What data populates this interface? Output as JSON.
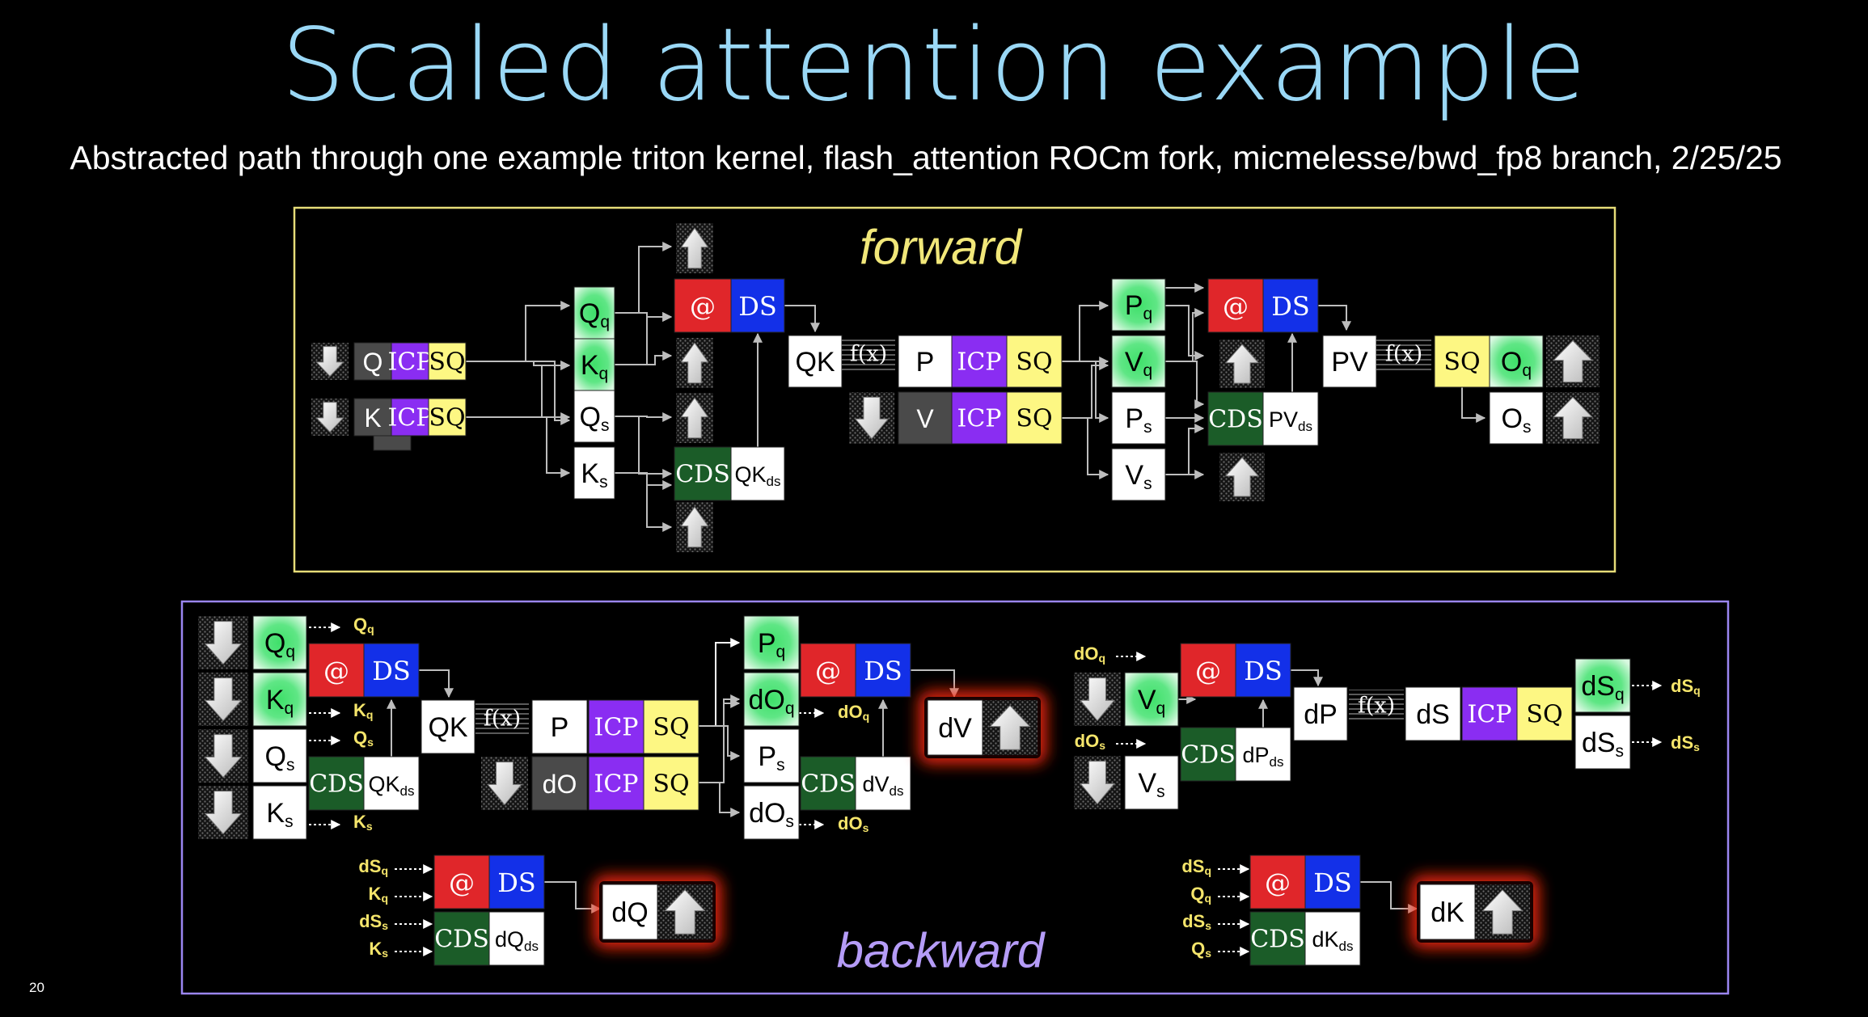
{
  "slide": {
    "title": "Scaled attention example",
    "subtitle": "Abstracted path through one example triton kernel, flash_attention ROCm fork, micmelesse/bwd_fp8 branch, 2/25/25",
    "page_number": "20"
  },
  "forward": {
    "label": "forward",
    "frame_color": "#e6dc78",
    "label_color": "#f1e779",
    "q_row": {
      "load": "Q",
      "icp": "ICP",
      "sq": "SQ"
    },
    "k_row": {
      "load": "K",
      "icp": "ICP",
      "sq": "SQ"
    },
    "quant_outputs": [
      "Q_q",
      "K_q",
      "Q_s",
      "K_s"
    ],
    "qk_matmul": {
      "matmul": "@",
      "ds": "DS",
      "cds": "CDS",
      "scale": "QK_ds"
    },
    "qk": "QK",
    "fx": "f(x)",
    "p_row": {
      "value": "P",
      "icp": "ICP",
      "sq": "SQ"
    },
    "v_row": {
      "load": "V",
      "icp": "ICP",
      "sq": "SQ"
    },
    "pv_quant_outputs": [
      "P_q",
      "V_q",
      "P_s",
      "V_s"
    ],
    "pv_matmul": {
      "matmul": "@",
      "ds": "DS",
      "cds": "CDS",
      "scale": "PV_ds"
    },
    "pv": "PV",
    "pv_fx": "f(x)",
    "o_row": {
      "sq": "SQ",
      "oq": "O_q",
      "os": "O_s"
    }
  },
  "backward": {
    "label": "backward",
    "frame_color": "#9b86f2",
    "label_color": "#b59cf7",
    "loads": [
      "Q_q",
      "K_q",
      "Q_s",
      "K_s"
    ],
    "passthrough_labels": [
      "Q_q",
      "K_q",
      "Q_s",
      "K_s"
    ],
    "qk_matmul": {
      "matmul": "@",
      "ds": "DS",
      "cds": "CDS",
      "scale": "QK_ds"
    },
    "qk": "QK",
    "fx": "f(x)",
    "p_row": {
      "value": "P",
      "icp": "ICP",
      "sq": "SQ"
    },
    "do_row": {
      "load": "dO",
      "icp": "ICP",
      "sq": "SQ"
    },
    "dv_inputs": [
      "P_q",
      "dO_q",
      "P_s",
      "dO_s"
    ],
    "dv_passthrough": [
      "dO_q",
      "dO_s"
    ],
    "dv_matmul": {
      "matmul": "@",
      "ds": "DS",
      "cds": "CDS",
      "scale": "dV_ds"
    },
    "dv_output": "dV",
    "dp_inputs_in": [
      "dO_q",
      "dO_s"
    ],
    "dp_loads": [
      "V_q",
      "V_s"
    ],
    "dp_matmul": {
      "matmul": "@",
      "ds": "DS",
      "cds": "CDS",
      "scale": "dP_ds"
    },
    "dp": "dP",
    "dp_fx": "f(x)",
    "ds_row": {
      "value": "dS",
      "icp": "ICP",
      "sq": "SQ"
    },
    "ds_outputs": [
      "dS_q",
      "dS_s"
    ],
    "ds_out_labels": [
      "dS_q",
      "dS_s"
    ],
    "dq_inputs": [
      "dS_q",
      "K_q",
      "dS_s",
      "K_s"
    ],
    "dq_matmul": {
      "matmul": "@",
      "ds": "DS",
      "cds": "CDS",
      "scale": "dQ_ds"
    },
    "dq_output": "dQ",
    "dk_inputs": [
      "dS_q",
      "Q_q",
      "dS_s",
      "Q_s"
    ],
    "dk_matmul": {
      "matmul": "@",
      "ds": "DS",
      "cds": "CDS",
      "scale": "dK_ds"
    },
    "dk_output": "dK"
  },
  "colors": {
    "matmul_red": "#e0262a",
    "ds_blue": "#1330e8",
    "icp_purple": "#8a2df2",
    "sq_yellow": "#fdf783",
    "cds_green": "#1b5c28",
    "quant_green": "#3fe06a",
    "load_gray": "#4a4a4a",
    "pass_label_yellow": "#f5e56b",
    "glow_red": "#ff2a10"
  }
}
